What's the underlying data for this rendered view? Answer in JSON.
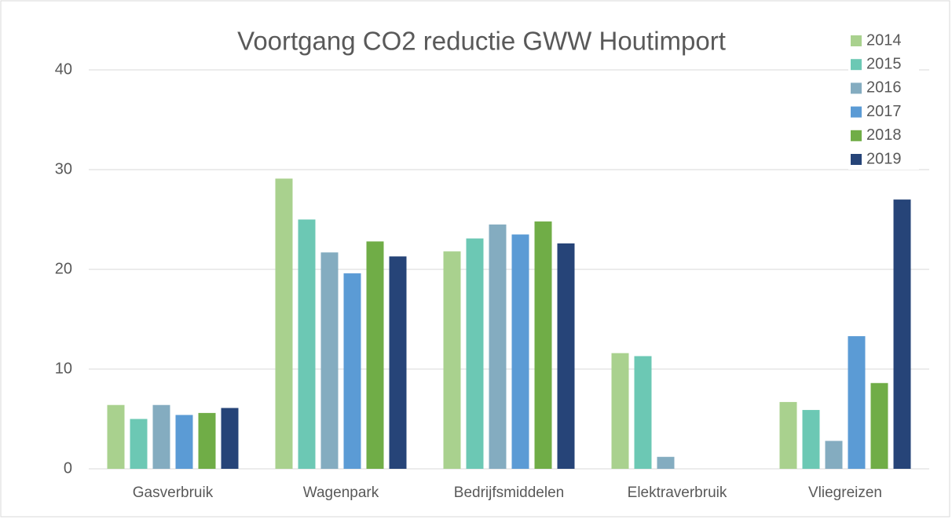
{
  "chart_data": {
    "type": "bar",
    "title": "Voortgang CO2 reductie GWW Houtimport",
    "categories": [
      "Gasverbruik",
      "Wagenpark",
      "Bedrijfsmiddelen",
      "Elektraverbruik",
      "Vliegreizen"
    ],
    "series": [
      {
        "name": "2014",
        "color": "#a9d18e",
        "values": [
          6.4,
          29.1,
          21.8,
          11.6,
          6.7
        ]
      },
      {
        "name": "2015",
        "color": "#6cc8b4",
        "values": [
          5.0,
          25.0,
          23.1,
          11.3,
          5.9
        ]
      },
      {
        "name": "2016",
        "color": "#84acc0",
        "values": [
          6.4,
          21.7,
          24.5,
          1.2,
          2.8
        ]
      },
      {
        "name": "2017",
        "color": "#5b9bd5",
        "values": [
          5.4,
          19.6,
          23.5,
          0,
          13.3
        ]
      },
      {
        "name": "2018",
        "color": "#70ad47",
        "values": [
          5.6,
          22.8,
          24.8,
          0,
          8.6
        ]
      },
      {
        "name": "2019",
        "color": "#264478",
        "values": [
          6.1,
          21.3,
          22.6,
          0,
          27.0
        ]
      }
    ],
    "ylim": [
      0,
      40
    ],
    "yticks": [
      0,
      10,
      20,
      30,
      40
    ],
    "grid": true,
    "legend": "top-right"
  }
}
